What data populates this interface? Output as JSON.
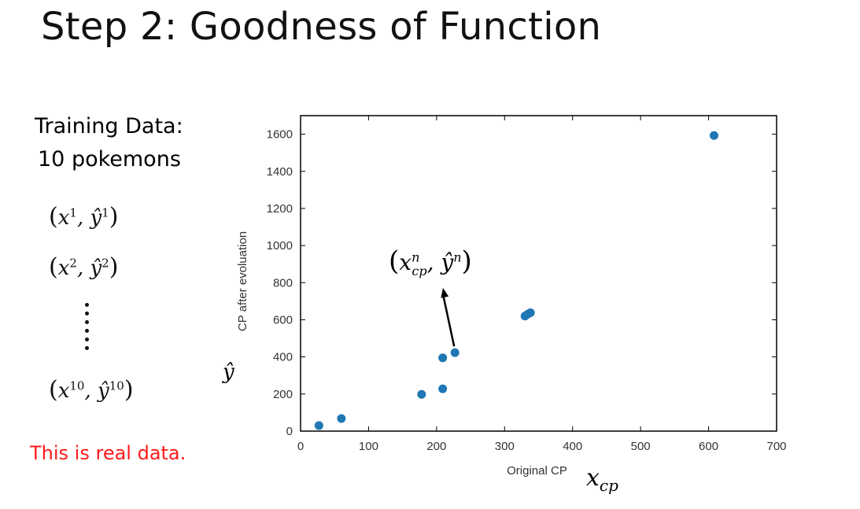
{
  "slide": {
    "title": "Step 2: Goodness of Function",
    "training_line1": "Training Data:",
    "training_line2": "10 pokemons",
    "pairs": [
      {
        "x": "x",
        "sup": "1",
        "y": "ŷ"
      },
      {
        "x": "x",
        "sup": "2",
        "y": "ŷ"
      },
      {
        "x": "x",
        "sup": "10",
        "y": "ŷ"
      }
    ],
    "note": "This is real data.",
    "note_color": "#ff1a1a",
    "yhat_symbol": "ŷ",
    "xcp_symbol": "x",
    "xcp_subscript": "cp",
    "annotation": {
      "x": "x",
      "sub": "cp",
      "sup": "n",
      "y": "ŷ",
      "ysup": "n"
    }
  },
  "chart_data": {
    "type": "scatter",
    "xlabel": "Original CP",
    "ylabel": "CP after evoluation",
    "xlim": [
      0,
      700
    ],
    "ylim": [
      0,
      1700
    ],
    "xticks": [
      0,
      100,
      200,
      300,
      400,
      500,
      600,
      700
    ],
    "yticks": [
      0,
      200,
      400,
      600,
      800,
      1000,
      1200,
      1400,
      1600
    ],
    "point_color": "#1f77b4",
    "points": [
      {
        "x": 27,
        "y": 30
      },
      {
        "x": 60,
        "y": 68
      },
      {
        "x": 178,
        "y": 198
      },
      {
        "x": 209,
        "y": 228
      },
      {
        "x": 209,
        "y": 395
      },
      {
        "x": 227,
        "y": 423
      },
      {
        "x": 330,
        "y": 620
      },
      {
        "x": 334,
        "y": 630
      },
      {
        "x": 338,
        "y": 638
      },
      {
        "x": 608,
        "y": 1593
      }
    ],
    "highlighted_point": {
      "x": 227,
      "y": 423
    }
  }
}
